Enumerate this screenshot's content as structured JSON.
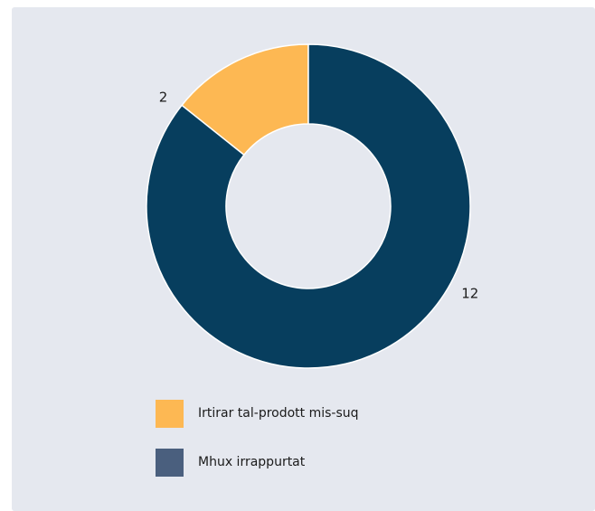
{
  "chart_data": {
    "type": "pie",
    "donut": true,
    "categories": [
      "Irtirar tal-prodott mis-suq",
      "Mhux irrappurtat"
    ],
    "values": [
      2,
      12
    ],
    "colors": [
      "#fdb853",
      "#073e5e"
    ],
    "legend_colors": [
      "#fdb853",
      "#4a5f7e"
    ],
    "legend": "bottom"
  }
}
